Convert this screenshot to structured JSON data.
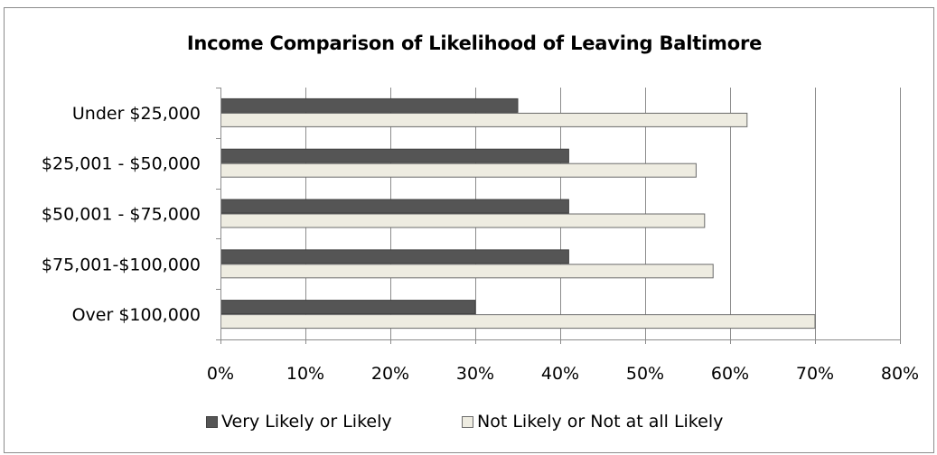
{
  "chart_data": {
    "type": "bar",
    "orientation": "horizontal",
    "title": "Income Comparison of Likelihood of Leaving Baltimore",
    "categories": [
      "Under $25,000",
      "$25,001 - $50,000",
      "$50,001 - $75,000",
      "$75,001-$100,000",
      "Over $100,000"
    ],
    "series": [
      {
        "name": "Very Likely or Likely",
        "color": "#555555",
        "values": [
          35,
          41,
          41,
          41,
          30
        ]
      },
      {
        "name": "Not Likely or Not at all Likely",
        "color": "#eeece1",
        "values": [
          62,
          56,
          57,
          58,
          70
        ]
      }
    ],
    "xlim": [
      0,
      80
    ],
    "xticks": [
      "0%",
      "10%",
      "20%",
      "30%",
      "40%",
      "50%",
      "60%",
      "70%",
      "80%"
    ],
    "grid": "vertical",
    "legend_position": "bottom"
  }
}
